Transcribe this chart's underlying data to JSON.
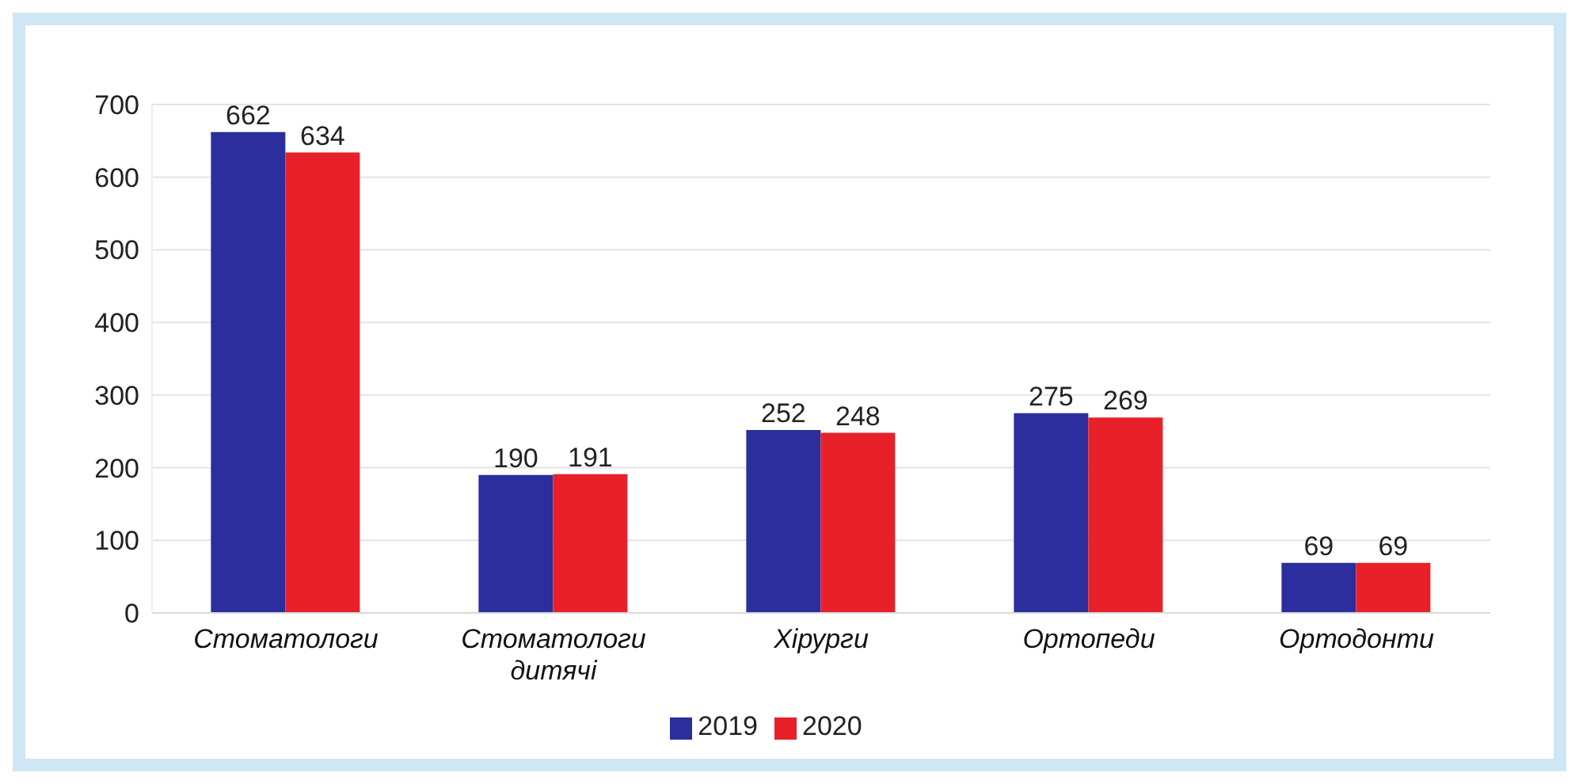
{
  "chart_data": {
    "type": "bar",
    "categories": [
      "Стоматологи",
      "Стоматологи дитячі",
      "Хірурги",
      "Ортопеди",
      "Ортодонти"
    ],
    "series": [
      {
        "name": "2019",
        "color": "#2b2e9c",
        "values": [
          662,
          190,
          252,
          275,
          69
        ]
      },
      {
        "name": "2020",
        "color": "#e8202a",
        "values": [
          634,
          191,
          248,
          269,
          69
        ]
      }
    ],
    "ylim": [
      0,
      700
    ],
    "yticks": [
      0,
      100,
      200,
      300,
      400,
      500,
      600,
      700
    ],
    "grid": "y",
    "legend": "bottom",
    "data_labels": true
  }
}
